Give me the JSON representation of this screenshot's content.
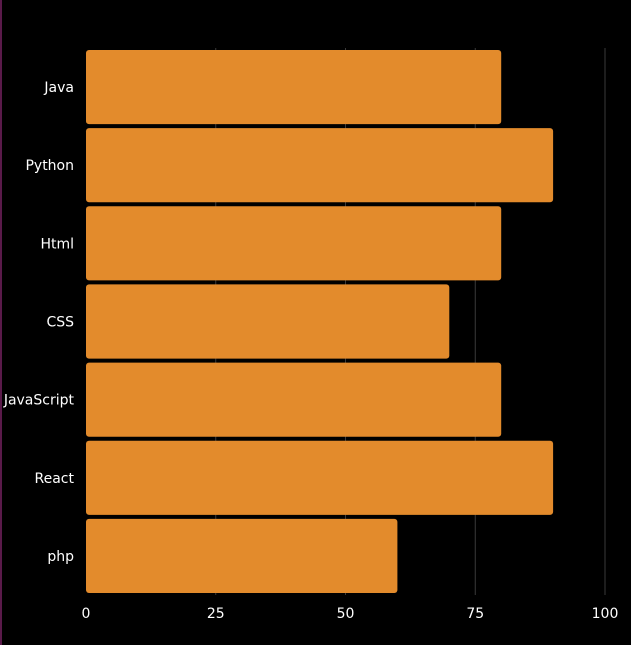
{
  "colors": {
    "background": "#000000",
    "bar": "#E38B2C",
    "grid": "#3a3a3a",
    "text": "#ffffff",
    "left_edge": "#5a1a4a"
  },
  "chart_data": {
    "type": "bar",
    "orientation": "horizontal",
    "title": "",
    "xlabel": "",
    "ylabel": "",
    "categories": [
      "Java",
      "Python",
      "Html",
      "CSS",
      "JavaScript",
      "React",
      "php"
    ],
    "values": [
      80,
      90,
      80,
      70,
      80,
      90,
      60
    ],
    "xlim": [
      0,
      100
    ],
    "x_ticks": [
      0,
      25,
      50,
      75,
      100
    ],
    "grid": "vertical",
    "legend": "none"
  }
}
